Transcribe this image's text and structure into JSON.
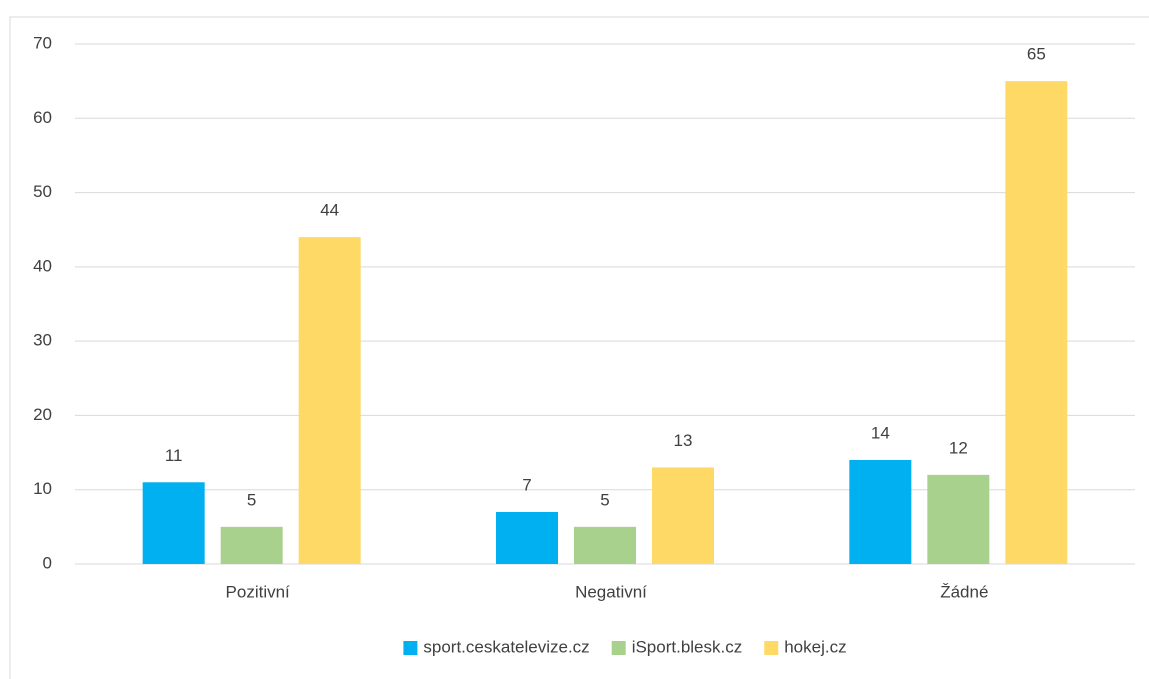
{
  "chart_data": {
    "type": "bar",
    "categories": [
      "Pozitivní",
      "Negativní",
      "Žádné"
    ],
    "series": [
      {
        "name": "sport.ceskatelevize.cz",
        "color": "#00b0f0",
        "values": [
          11,
          7,
          14
        ]
      },
      {
        "name": "iSport.blesk.cz",
        "color": "#a9d18e",
        "values": [
          5,
          5,
          12
        ]
      },
      {
        "name": "hokej.cz",
        "color": "#ffd966",
        "values": [
          44,
          13,
          65
        ]
      }
    ],
    "ylim": [
      0,
      70
    ],
    "yticks": [
      0,
      10,
      20,
      30,
      40,
      50,
      60,
      70
    ],
    "grid": true,
    "legend": "bottom"
  }
}
